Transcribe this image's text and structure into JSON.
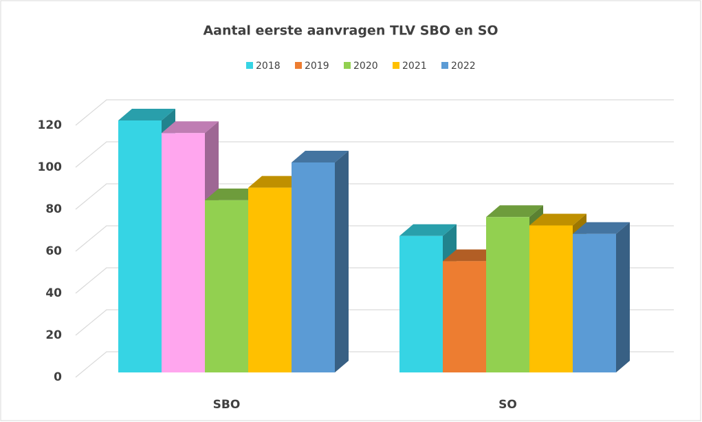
{
  "chart_data": {
    "type": "bar3d",
    "title": "Aantal eerste aanvragen TLV SBO en SO",
    "categories": [
      "SBO",
      "SO"
    ],
    "series": [
      {
        "name": "2018",
        "color": "#36d4e4",
        "values": [
          120,
          65
        ]
      },
      {
        "name": "2019",
        "color": "#ed7d31",
        "point_colors": [
          "#ffa6ee",
          "#ed7d31"
        ],
        "values": [
          114,
          53
        ]
      },
      {
        "name": "2020",
        "color": "#92d050",
        "values": [
          82,
          74
        ]
      },
      {
        "name": "2021",
        "color": "#ffc000",
        "values": [
          88,
          70
        ]
      },
      {
        "name": "2022",
        "color": "#5b9bd5",
        "values": [
          100,
          66
        ]
      }
    ],
    "ylim": [
      0,
      120
    ],
    "yticks": [
      0,
      20,
      40,
      60,
      80,
      100,
      120
    ],
    "grid": true,
    "legend": "top"
  }
}
